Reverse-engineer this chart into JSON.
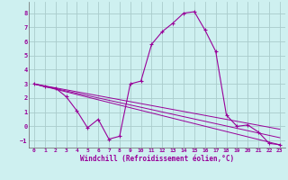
{
  "xlabel": "Windchill (Refroidissement éolien,°C)",
  "background_color": "#cef0f0",
  "line_color": "#990099",
  "grid_color": "#aacccc",
  "xlim": [
    -0.5,
    23.5
  ],
  "ylim": [
    -1.5,
    8.8
  ],
  "yticks": [
    -1,
    0,
    1,
    2,
    3,
    4,
    5,
    6,
    7,
    8
  ],
  "xticks": [
    0,
    1,
    2,
    3,
    4,
    5,
    6,
    7,
    8,
    9,
    10,
    11,
    12,
    13,
    14,
    15,
    16,
    17,
    18,
    19,
    20,
    21,
    22,
    23
  ],
  "series_main": {
    "x": [
      0,
      1,
      2,
      3,
      4,
      5,
      6,
      7,
      8,
      9,
      10,
      11,
      12,
      13,
      14,
      15,
      16,
      17,
      18,
      19,
      20,
      21,
      22,
      23
    ],
    "y": [
      3.0,
      2.8,
      2.7,
      2.1,
      1.1,
      -0.1,
      0.5,
      -0.9,
      -0.7,
      3.0,
      3.2,
      5.8,
      6.7,
      7.3,
      8.0,
      8.1,
      6.8,
      5.3,
      0.8,
      0.0,
      0.1,
      -0.4,
      -1.2,
      -1.3
    ]
  },
  "series_lines": [
    {
      "x": [
        0,
        23
      ],
      "y": [
        3.0,
        -1.3
      ]
    },
    {
      "x": [
        0,
        23
      ],
      "y": [
        3.0,
        -0.8
      ]
    },
    {
      "x": [
        0,
        23
      ],
      "y": [
        3.0,
        -0.2
      ]
    }
  ]
}
